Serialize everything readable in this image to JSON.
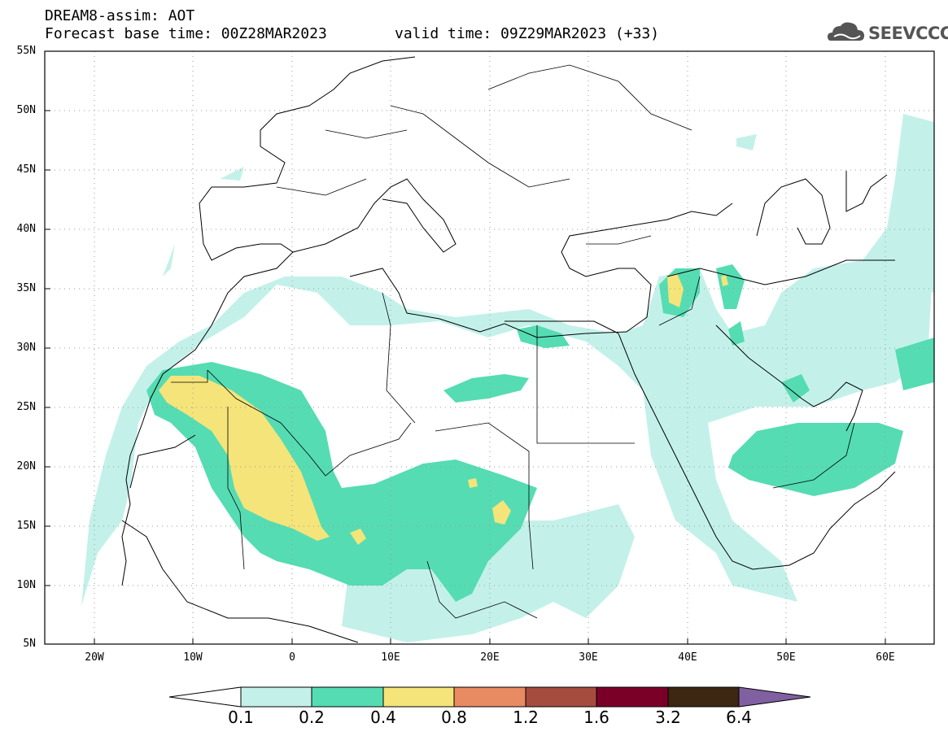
{
  "header": {
    "title": "DREAM8-assim: AOT",
    "base_time": "Forecast base time: 00Z28MAR2023",
    "valid_time": "valid time: 09Z29MAR2023 (+33)"
  },
  "logo": {
    "text": "SEEVCCC",
    "icon": "cloud-icon"
  },
  "axes": {
    "lat_labels": [
      "55N",
      "50N",
      "45N",
      "40N",
      "35N",
      "30N",
      "25N",
      "20N",
      "15N",
      "10N",
      "5N"
    ],
    "lon_labels": [
      "20W",
      "10W",
      "0",
      "10E",
      "20E",
      "30E",
      "40E",
      "50E",
      "60E"
    ],
    "lat_range": [
      5,
      55
    ],
    "lon_range": [
      -25,
      65
    ],
    "grid": "dotted"
  },
  "colorbar": {
    "labels": [
      "0.1",
      "0.2",
      "0.4",
      "0.8",
      "1.2",
      "1.6",
      "3.2",
      "6.4"
    ],
    "colors": [
      "#ffffff",
      "#c3f1ea",
      "#55dcb2",
      "#f5e47a",
      "#e88a62",
      "#a64c3f",
      "#7a0027",
      "#3d2612",
      "#8060a0"
    ]
  }
}
